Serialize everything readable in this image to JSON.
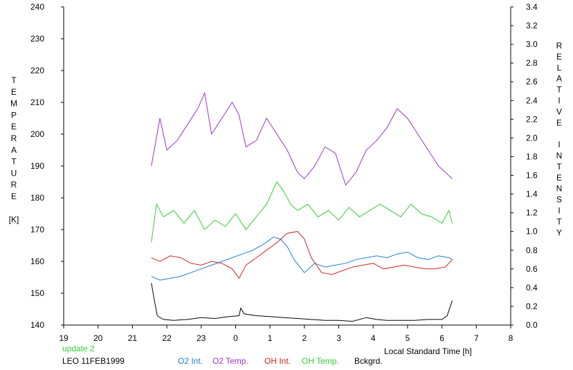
{
  "chart_data": {
    "type": "line",
    "title": "",
    "xlabel": "Local Standard Time [h]",
    "ylabel_left_letters": [
      "T",
      "E",
      "M",
      "P",
      "E",
      "R",
      "A",
      "T",
      "U",
      "R",
      "E",
      "",
      "[K]"
    ],
    "ylabel_right_letters": [
      "R",
      "E",
      "L",
      "A",
      "T",
      "I",
      "V",
      "E",
      "",
      "I",
      "N",
      "T",
      "E",
      "N",
      "S",
      "I",
      "T",
      "Y"
    ],
    "xlim": [
      19,
      32
    ],
    "x_ticks": [
      19,
      20,
      21,
      22,
      23,
      24,
      25,
      26,
      27,
      28,
      29,
      30,
      31,
      32
    ],
    "x_tick_labels": [
      "19",
      "20",
      "21",
      "22",
      "23",
      "0",
      "1",
      "2",
      "3",
      "4",
      "5",
      "6",
      "7",
      "8"
    ],
    "ylim_left": [
      140,
      240
    ],
    "y_left_ticks": [
      "140",
      "150",
      "160",
      "170",
      "180",
      "190",
      "200",
      "210",
      "220",
      "230",
      "240"
    ],
    "ylim_right": [
      0,
      3.4
    ],
    "y_right_ticks": [
      "0.0",
      "0.2",
      "0.4",
      "0.6",
      "0.8",
      "1.0",
      "1.2",
      "1.4",
      "1.6",
      "1.8",
      "2.0",
      "2.2",
      "2.4",
      "2.6",
      "2.8",
      "3.0",
      "3.2",
      "3.4"
    ],
    "grid": false,
    "legend_position": "bottom",
    "series": [
      {
        "name": "O2 Temp.",
        "axis": "left",
        "color": "#9933cc",
        "x": [
          21.55,
          21.8,
          22.0,
          22.3,
          22.6,
          22.9,
          23.1,
          23.3,
          23.6,
          23.9,
          24.1,
          24.3,
          24.6,
          24.9,
          25.2,
          25.5,
          25.8,
          26.0,
          26.3,
          26.6,
          26.9,
          27.2,
          27.5,
          27.8,
          28.1,
          28.4,
          28.7,
          29.0,
          29.3,
          29.6,
          29.9,
          30.1,
          30.3
        ],
        "y": [
          190,
          205,
          195,
          198,
          203,
          208,
          213,
          200,
          205,
          210,
          206,
          196,
          198,
          205,
          200,
          195,
          188,
          186,
          190,
          196,
          194,
          184,
          188,
          195,
          198,
          202,
          208,
          205,
          200,
          195,
          190,
          188,
          186
        ]
      },
      {
        "name": "OH Temp.",
        "axis": "left",
        "color": "#33cc33",
        "x": [
          21.55,
          21.7,
          21.9,
          22.2,
          22.5,
          22.8,
          23.1,
          23.4,
          23.7,
          24.0,
          24.3,
          24.6,
          24.9,
          25.2,
          25.4,
          25.6,
          25.8,
          26.1,
          26.4,
          26.7,
          27.0,
          27.3,
          27.6,
          27.9,
          28.2,
          28.5,
          28.8,
          29.1,
          29.4,
          29.7,
          30.0,
          30.2,
          30.3
        ],
        "y": [
          166,
          178,
          174,
          176,
          172,
          176,
          170,
          173,
          171,
          175,
          170,
          174,
          178,
          185,
          182,
          178,
          176,
          178,
          174,
          176,
          173,
          177,
          174,
          176,
          178,
          176,
          174,
          178,
          175,
          174,
          172,
          176,
          172
        ]
      },
      {
        "name": "O2 Int.",
        "axis": "right",
        "color": "#1a7fd4",
        "x": [
          21.55,
          21.8,
          22.1,
          22.4,
          22.7,
          23.0,
          23.3,
          23.6,
          23.9,
          24.2,
          24.5,
          24.8,
          25.1,
          25.3,
          25.5,
          25.7,
          26.0,
          26.3,
          26.6,
          26.9,
          27.2,
          27.5,
          27.8,
          28.1,
          28.4,
          28.7,
          29.0,
          29.3,
          29.6,
          29.9,
          30.2,
          30.3
        ],
        "y": [
          0.52,
          0.48,
          0.5,
          0.52,
          0.56,
          0.6,
          0.64,
          0.68,
          0.72,
          0.76,
          0.8,
          0.86,
          0.94,
          0.92,
          0.84,
          0.7,
          0.56,
          0.66,
          0.62,
          0.64,
          0.66,
          0.7,
          0.72,
          0.74,
          0.72,
          0.76,
          0.78,
          0.72,
          0.7,
          0.74,
          0.72,
          0.7
        ]
      },
      {
        "name": "OH Int.",
        "axis": "right",
        "color": "#d42020",
        "x": [
          21.55,
          21.8,
          22.1,
          22.4,
          22.7,
          23.0,
          23.3,
          23.6,
          23.9,
          24.1,
          24.3,
          24.6,
          24.9,
          25.2,
          25.5,
          25.8,
          26.0,
          26.2,
          26.5,
          26.8,
          27.1,
          27.4,
          27.7,
          28.0,
          28.3,
          28.6,
          28.9,
          29.2,
          29.5,
          29.8,
          30.1,
          30.3
        ],
        "y": [
          0.72,
          0.68,
          0.74,
          0.72,
          0.66,
          0.64,
          0.68,
          0.66,
          0.6,
          0.5,
          0.64,
          0.72,
          0.8,
          0.88,
          0.98,
          1.0,
          0.92,
          0.72,
          0.56,
          0.54,
          0.58,
          0.62,
          0.64,
          0.66,
          0.6,
          0.62,
          0.64,
          0.62,
          0.6,
          0.6,
          0.62,
          0.7
        ]
      },
      {
        "name": "Bckgrd.",
        "axis": "right",
        "color": "#000000",
        "x": [
          21.55,
          21.62,
          21.72,
          21.9,
          22.2,
          22.6,
          23.0,
          23.4,
          23.8,
          24.1,
          24.15,
          24.25,
          24.6,
          25.0,
          25.4,
          25.8,
          26.2,
          26.6,
          27.0,
          27.4,
          27.8,
          28.1,
          28.4,
          28.8,
          29.2,
          29.6,
          30.0,
          30.15,
          30.3
        ],
        "y": [
          0.45,
          0.3,
          0.1,
          0.06,
          0.05,
          0.06,
          0.08,
          0.07,
          0.09,
          0.1,
          0.18,
          0.12,
          0.1,
          0.09,
          0.08,
          0.07,
          0.06,
          0.05,
          0.05,
          0.04,
          0.08,
          0.06,
          0.05,
          0.05,
          0.05,
          0.06,
          0.06,
          0.1,
          0.26
        ]
      }
    ],
    "annotations": {
      "update": "update 2",
      "station": "LEO 11FEB1999"
    }
  }
}
